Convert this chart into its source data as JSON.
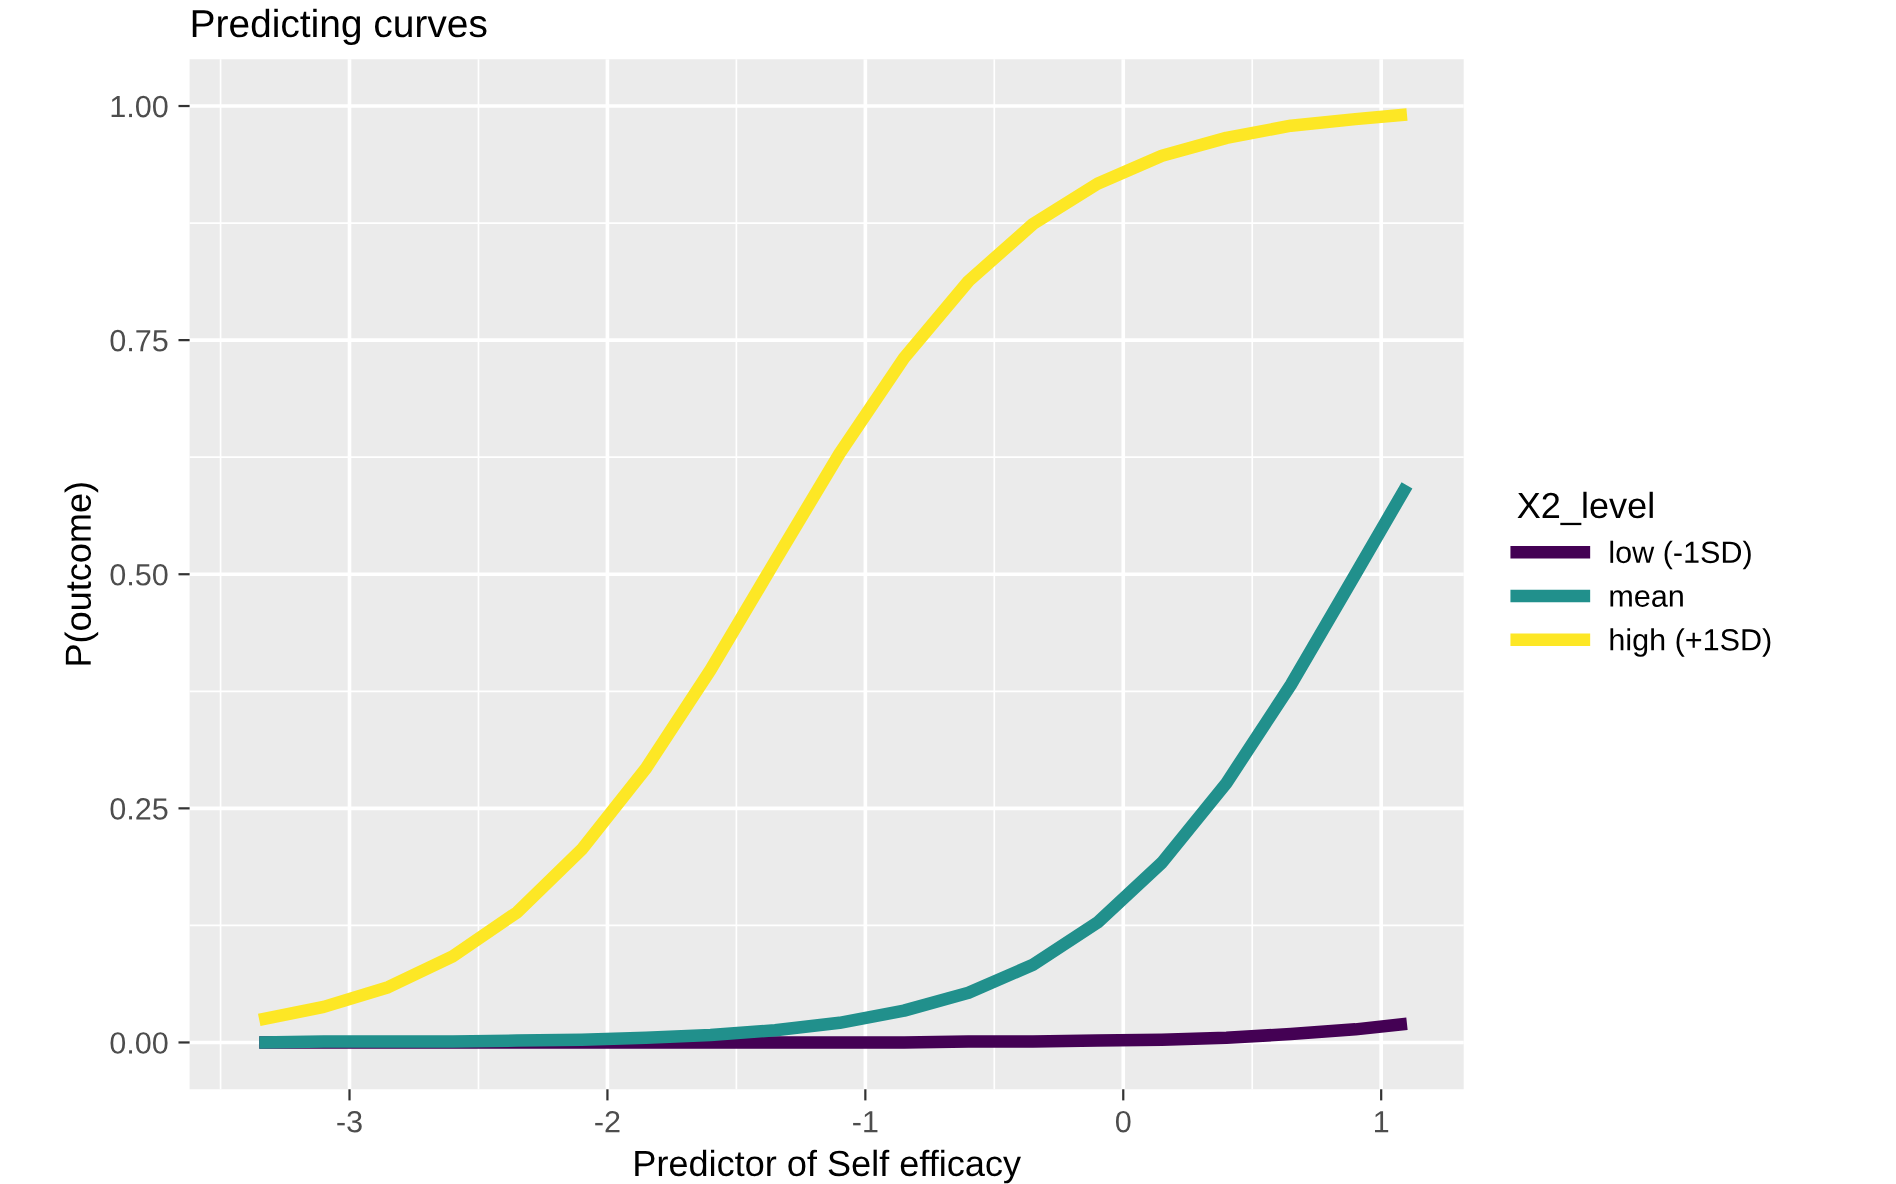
{
  "chart_data": {
    "type": "line",
    "title": "Predicting curves",
    "xlabel": "Predictor of Self efficacy",
    "ylabel": "P(outcome)",
    "legend_title": "X2_level",
    "legend": "right",
    "grid": true,
    "marker": "none",
    "line_style": "solid",
    "x": [
      -3.35,
      -3.1,
      -2.85,
      -2.6,
      -2.35,
      -2.1,
      -1.85,
      -1.6,
      -1.35,
      -1.1,
      -0.85,
      -0.6,
      -0.35,
      -0.1,
      0.15,
      0.4,
      0.65,
      0.9,
      1.1
    ],
    "xlim": [
      -3.62,
      1.32
    ],
    "ylim": [
      -0.05,
      1.05
    ],
    "xticks": [
      {
        "value": -3.5,
        "label": null
      },
      -3,
      {
        "value": -2.5,
        "label": null
      },
      -2,
      {
        "value": -1.5,
        "label": null
      },
      -1,
      {
        "value": -0.5,
        "label": null
      },
      0,
      {
        "value": 0.5,
        "label": null
      },
      1
    ],
    "yticks": [
      {
        "value": 0,
        "label": "0.00"
      },
      {
        "value": 0.125,
        "label": null
      },
      {
        "value": 0.25,
        "label": "0.25"
      },
      {
        "value": 0.375,
        "label": null
      },
      {
        "value": 0.5,
        "label": "0.50"
      },
      {
        "value": 0.625,
        "label": null
      },
      {
        "value": 0.75,
        "label": "0.75"
      },
      {
        "value": 0.875,
        "label": null
      },
      {
        "value": 1,
        "label": "1.00"
      }
    ],
    "series": [
      {
        "name": "low (-1SD)",
        "color": "#440154",
        "values": [
          0.0,
          0.0,
          0.0,
          0.0,
          0.0,
          0.0,
          0.0,
          0.0,
          0.0,
          0.0,
          0.0,
          0.001,
          0.001,
          0.002,
          0.003,
          0.005,
          0.009,
          0.014,
          0.02
        ]
      },
      {
        "name": "mean",
        "color": "#21908c",
        "values": [
          0.0,
          0.001,
          0.001,
          0.001,
          0.002,
          0.003,
          0.005,
          0.008,
          0.013,
          0.021,
          0.034,
          0.053,
          0.083,
          0.128,
          0.192,
          0.277,
          0.382,
          0.5,
          0.595
        ]
      },
      {
        "name": "high (+1SD)",
        "color": "#fde725",
        "values": [
          0.024,
          0.038,
          0.059,
          0.092,
          0.139,
          0.206,
          0.293,
          0.398,
          0.514,
          0.629,
          0.731,
          0.813,
          0.874,
          0.917,
          0.947,
          0.966,
          0.979,
          0.986,
          0.991
        ]
      }
    ]
  }
}
